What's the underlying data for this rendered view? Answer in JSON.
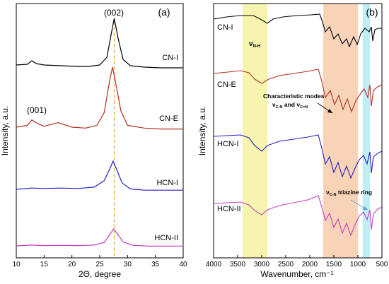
{
  "chart_data": [
    {
      "type": "line",
      "panel_label": "(a)",
      "xlabel": "2Θ, degree",
      "ylabel": "Intensity, a.u.",
      "xlim": [
        10,
        40
      ],
      "x_ticks": [
        "10",
        "15",
        "20",
        "25",
        "30",
        "35",
        "40"
      ],
      "peak_labels": [
        {
          "text": "(002)",
          "x": 27.5
        },
        {
          "text": "(001)",
          "x": 13.0
        }
      ],
      "reference_line": {
        "x": 27.6,
        "style": "dashed",
        "color": "#f0a040"
      },
      "series": [
        {
          "name": "CN-I",
          "color": "#000000",
          "x": [
            10,
            12,
            12.8,
            13.6,
            15,
            18,
            21,
            23,
            25,
            26.3,
            27,
            27.6,
            28.3,
            29.2,
            30.5,
            33,
            36,
            40
          ],
          "y": [
            0.34,
            0.35,
            0.4,
            0.36,
            0.34,
            0.33,
            0.32,
            0.32,
            0.34,
            0.45,
            0.75,
            1.0,
            0.72,
            0.42,
            0.33,
            0.31,
            0.3,
            0.3
          ]
        },
        {
          "name": "CN-E",
          "color": "#b03020",
          "x": [
            10,
            12,
            12.8,
            13.8,
            15,
            17.5,
            20,
            22.5,
            24.5,
            25.8,
            26.8,
            27.3,
            27.9,
            28.8,
            30,
            33,
            36,
            40
          ],
          "y": [
            0.34,
            0.36,
            0.42,
            0.38,
            0.35,
            0.39,
            0.34,
            0.33,
            0.36,
            0.5,
            0.86,
            1.0,
            0.82,
            0.52,
            0.36,
            0.33,
            0.32,
            0.32
          ]
        },
        {
          "name": "HCN-I",
          "color": "#2020c0",
          "x": [
            10,
            12.8,
            15,
            18,
            21,
            24,
            25.8,
            26.8,
            27.4,
            28,
            29,
            30.5,
            33,
            36,
            40
          ],
          "y": [
            0.35,
            0.38,
            0.37,
            0.38,
            0.37,
            0.4,
            0.55,
            0.82,
            1.0,
            0.82,
            0.5,
            0.36,
            0.33,
            0.33,
            0.33
          ]
        },
        {
          "name": "HCN-II",
          "color": "#c040c0",
          "x": [
            10,
            12.8,
            15,
            18,
            21,
            24,
            25.8,
            26.8,
            27.5,
            28.2,
            29.2,
            31,
            34,
            37,
            40
          ],
          "y": [
            0.35,
            0.38,
            0.36,
            0.37,
            0.36,
            0.38,
            0.48,
            0.78,
            1.0,
            0.8,
            0.5,
            0.37,
            0.34,
            0.34,
            0.34
          ]
        }
      ]
    },
    {
      "type": "line",
      "panel_label": "(b)",
      "xlabel": "Wavenumber, cm⁻¹",
      "ylabel": "Intensity, a.u.",
      "xlim": [
        4000,
        500
      ],
      "x_ticks": [
        "4000",
        "3500",
        "3000",
        "2500",
        "2000",
        "1500",
        "1000",
        "500"
      ],
      "bands": [
        {
          "from": 3400,
          "to": 2880,
          "color": "#f7f4b0"
        },
        {
          "from": 1720,
          "to": 1000,
          "color": "#f8d3b8"
        },
        {
          "from": 900,
          "to": 750,
          "color": "#bfeef4"
        }
      ],
      "annotations": {
        "v_nh": "ν",
        "v_nh_sub": "N-H",
        "modes_line1": "Characteristic modes",
        "modes_line2_a": "ν",
        "modes_line2_a_sub": "C-N",
        "modes_line2_mid": " and ν",
        "modes_line2_b_sub": "C=N",
        "triazine_a": "ν",
        "triazine_sub": "C-N",
        "triazine_b": " triazine ring"
      },
      "series": [
        {
          "name": "CN-I",
          "color": "#000000"
        },
        {
          "name": "CN-E",
          "color": "#b03020"
        },
        {
          "name": "HCN-I",
          "color": "#2020c0"
        },
        {
          "name": "HCN-II",
          "color": "#c040c0"
        }
      ]
    }
  ]
}
